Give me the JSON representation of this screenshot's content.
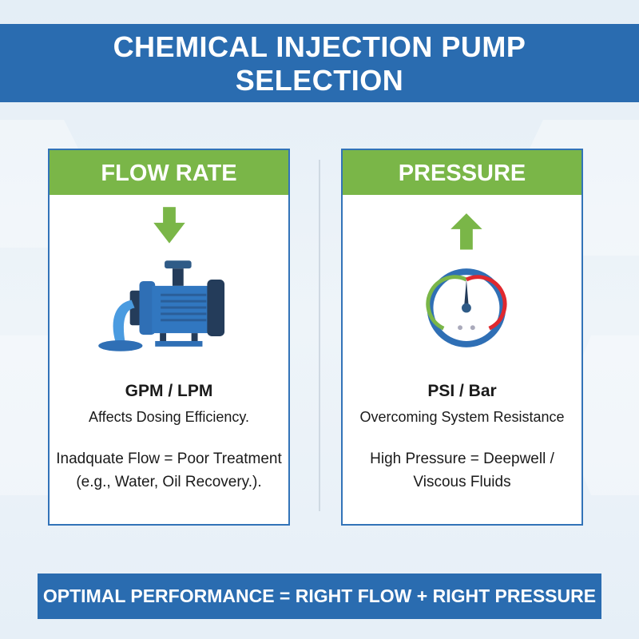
{
  "title": {
    "line1": "CHEMICAL INJECTION PUMP",
    "line2": "SELECTION"
  },
  "cards": [
    {
      "heading": "FLOW RATE",
      "icon": "pump-icon",
      "arrow": "arrow-down-icon",
      "unit": "GPM / LPM",
      "description": "Affects Dosing Efficiency.",
      "note_line1": "Inadquate Flow = Poor Treatment",
      "note_line2": "(e.g., Water, Oil Recovery.)."
    },
    {
      "heading": "PRESSURE",
      "icon": "pressure-gauge-icon",
      "arrow": "arrow-up-icon",
      "unit": "PSI / Bar",
      "description": "Overcoming System Resistance",
      "note_line1": "High Pressure = Deepwell /",
      "note_line2": "Viscous Fluids"
    }
  ],
  "footer": "OPTIMAL PERFORMANCE = RIGHT FLOW + RIGHT PRESSURE",
  "colors": {
    "primary_blue": "#2a6cb0",
    "accent_green": "#7ab648",
    "gauge_red": "#e0282e"
  }
}
